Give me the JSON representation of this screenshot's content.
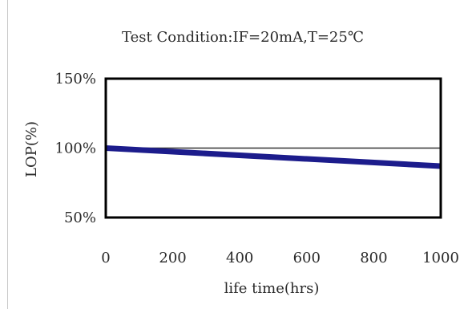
{
  "chart_data": {
    "type": "line",
    "title": "Test Condition:IF=20mA,T=25℃",
    "xlabel": "life time(hrs)",
    "ylabel": "LOP(%)",
    "xlim": [
      0,
      1000
    ],
    "ylim": [
      50,
      150
    ],
    "x_ticks": [
      "0",
      "200",
      "400",
      "600",
      "800",
      "1000"
    ],
    "y_ticks": [
      "150%",
      "100%",
      "50%"
    ],
    "x_tick_values": [
      0,
      200,
      400,
      600,
      800,
      1000
    ],
    "y_tick_values": [
      150,
      100,
      50
    ],
    "reference_line": {
      "y": 100
    },
    "grid": false,
    "series": [
      {
        "x": [
          0,
          1000
        ],
        "y": [
          100,
          87
        ],
        "color": "#1c1c8c"
      }
    ]
  },
  "colors": {
    "series": "#1c1c8c",
    "frame": "#000000",
    "reference": "#333333",
    "text": "#2a2a2a"
  }
}
